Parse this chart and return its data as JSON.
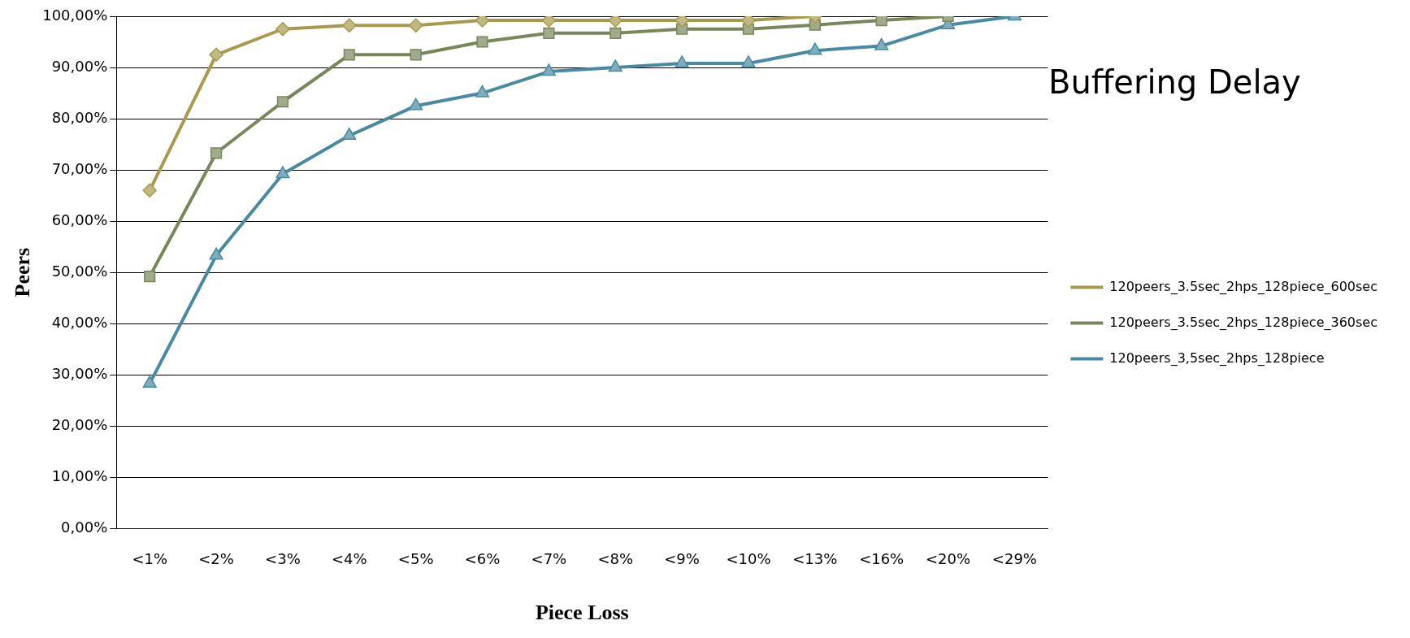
{
  "chart_data": {
    "type": "line",
    "title": "Buffering Delay",
    "xlabel": "Piece Loss",
    "ylabel": "Peers",
    "categories": [
      "<1%",
      "<2%",
      "<3%",
      "<4%",
      "<5%",
      "<6%",
      "<7%",
      "<8%",
      "<9%",
      "<10%",
      "<13%",
      "<16%",
      "<20%",
      "<29%"
    ],
    "series": [
      {
        "name": "120peers_3.5sec_2hps_128piece_600sec",
        "color": "#a89a4c",
        "marker": "diamond",
        "values": [
          66.0,
          92.5,
          97.5,
          98.2,
          98.2,
          99.2,
          99.2,
          99.2,
          99.2,
          99.2,
          100,
          null,
          null,
          null
        ]
      },
      {
        "name": "120peers_3.5sec_2hps_128piece_360sec",
        "color": "#77875a",
        "marker": "square",
        "values": [
          49.2,
          73.3,
          83.3,
          92.5,
          92.5,
          95.0,
          96.7,
          96.7,
          97.5,
          97.5,
          98.3,
          99.2,
          100,
          null
        ]
      },
      {
        "name": "120peers_3,5sec_2hps_128piece",
        "color": "#4a8aa0",
        "marker": "triangle",
        "values": [
          28.3,
          53.3,
          69.2,
          76.7,
          82.5,
          85.0,
          89.2,
          90.0,
          90.8,
          90.8,
          93.3,
          94.2,
          98.3,
          100
        ]
      }
    ],
    "ylim": [
      0,
      100
    ],
    "yticks": [
      {
        "value": 0,
        "label": "0,00%"
      },
      {
        "value": 10,
        "label": "10,00%"
      },
      {
        "value": 20,
        "label": "20,00%"
      },
      {
        "value": 30,
        "label": "30,00%"
      },
      {
        "value": 40,
        "label": "40,00%"
      },
      {
        "value": 50,
        "label": "50,00%"
      },
      {
        "value": 60,
        "label": "60,00%"
      },
      {
        "value": 70,
        "label": "70,00%"
      },
      {
        "value": 80,
        "label": "80,00%"
      },
      {
        "value": 90,
        "label": "90,00%"
      },
      {
        "value": 100,
        "label": "100,00%"
      }
    ],
    "grid": "y",
    "legend": "right",
    "line_style": "solid"
  }
}
